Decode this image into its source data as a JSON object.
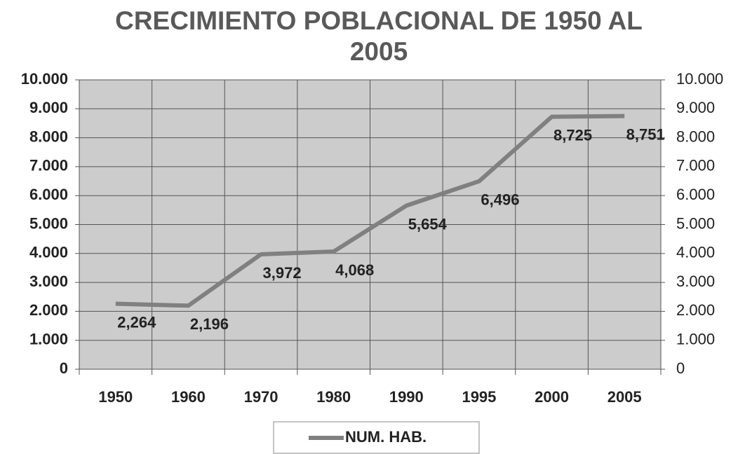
{
  "chart_data": {
    "type": "line",
    "title": "CRECIMIENTO POBLACIONAL DE 1950 AL 2005",
    "categories": [
      "1950",
      "1960",
      "1970",
      "1980",
      "1990",
      "1995",
      "2000",
      "2005"
    ],
    "series": [
      {
        "name": "NUM. HAB.",
        "color": "#808080",
        "values": [
          2264,
          2196,
          3972,
          4068,
          5654,
          6496,
          8725,
          8751
        ],
        "value_labels": [
          "2,264",
          "2,196",
          "3,972",
          "4,068",
          "5,654",
          "6,496",
          "8,725",
          "8,751"
        ]
      }
    ],
    "ylim": [
      0,
      10000
    ],
    "yticks": [
      {
        "value": 0,
        "label": "0"
      },
      {
        "value": 1000,
        "label": "1.000"
      },
      {
        "value": 2000,
        "label": "2.000"
      },
      {
        "value": 3000,
        "label": "3.000"
      },
      {
        "value": 4000,
        "label": "4.000"
      },
      {
        "value": 5000,
        "label": "5.000"
      },
      {
        "value": 6000,
        "label": "6.000"
      },
      {
        "value": 7000,
        "label": "7.000"
      },
      {
        "value": 8000,
        "label": "8.000"
      },
      {
        "value": 9000,
        "label": "9.000"
      },
      {
        "value": 10000,
        "label": "10.000"
      }
    ],
    "y2lim": [
      0,
      10000
    ],
    "y2ticks": [
      {
        "value": 0,
        "label": "0"
      },
      {
        "value": 1000,
        "label": "1.000"
      },
      {
        "value": 2000,
        "label": "2.000"
      },
      {
        "value": 3000,
        "label": "3.000"
      },
      {
        "value": 4000,
        "label": "4.000"
      },
      {
        "value": 5000,
        "label": "5.000"
      },
      {
        "value": 6000,
        "label": "6.000"
      },
      {
        "value": 7000,
        "label": "7.000"
      },
      {
        "value": 8000,
        "label": "8.000"
      },
      {
        "value": 9000,
        "label": "9.000"
      },
      {
        "value": 10000,
        "label": "10.000"
      }
    ],
    "grid": true,
    "legend": "bottom"
  }
}
